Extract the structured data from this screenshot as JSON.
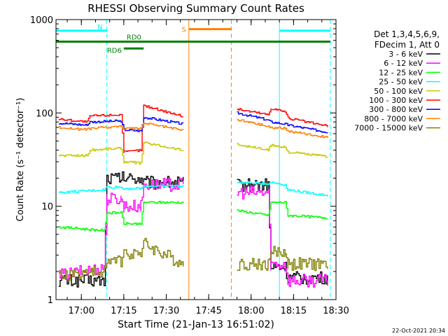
{
  "chart_data": {
    "type": "line",
    "title": "RHESSI Observing Summary Count Rates",
    "xlabel": "Start Time (21-Jan-13 16:51:02)",
    "ylabel": "Count Rate (s⁻¹ detector⁻¹)",
    "xlim": [
      "16:51:02",
      "18:30:00"
    ],
    "ylim": [
      1,
      1000
    ],
    "y_scale": "log",
    "x_ticks": [
      "17:00",
      "17:15",
      "17:30",
      "17:45",
      "18:00",
      "18:15",
      "18:30"
    ],
    "y_ticks": [
      "1",
      "10",
      "100",
      "1000"
    ],
    "legend_position": "top-right",
    "legend_header": [
      "Det 1,3,4,5,6,9,",
      "FDecim 1, Att 0"
    ],
    "footer_timestamp": "22-Oct-2021 20:34",
    "data_gaps": [
      [
        "17:37",
        "17:54"
      ]
    ],
    "series": [
      {
        "name": "3 - 6 keV",
        "color": "#000000",
        "points": [
          [
            "16:52",
            1.6
          ],
          [
            "17:08",
            1.6
          ],
          [
            "17:09",
            20
          ],
          [
            "17:21",
            20
          ],
          [
            "17:22",
            18
          ],
          [
            "17:36",
            18
          ],
          [
            "17:55",
            17
          ],
          [
            "18:06",
            17
          ],
          [
            "18:07",
            2.2
          ],
          [
            "18:12",
            2.2
          ],
          [
            "18:13",
            1.7
          ],
          [
            "18:27",
            1.7
          ]
        ]
      },
      {
        "name": "6 - 12 keV",
        "color": "#ff00ff",
        "points": [
          [
            "16:52",
            1.8
          ],
          [
            "17:08",
            2.2
          ],
          [
            "17:09",
            12
          ],
          [
            "17:14",
            12
          ],
          [
            "17:15",
            10
          ],
          [
            "17:21",
            10
          ],
          [
            "17:22",
            17
          ],
          [
            "17:36",
            17
          ],
          [
            "17:55",
            14
          ],
          [
            "18:06",
            14
          ],
          [
            "18:07",
            2.4
          ],
          [
            "18:12",
            2.4
          ],
          [
            "18:13",
            1.6
          ],
          [
            "18:27",
            1.6
          ]
        ]
      },
      {
        "name": "12 - 25 keV",
        "color": "#00ff00",
        "points": [
          [
            "16:52",
            6
          ],
          [
            "17:08",
            5.5
          ],
          [
            "17:09",
            8.5
          ],
          [
            "17:14",
            8.5
          ],
          [
            "17:15",
            6.5
          ],
          [
            "17:21",
            6.5
          ],
          [
            "17:22",
            11
          ],
          [
            "17:36",
            11
          ],
          [
            "17:55",
            9
          ],
          [
            "18:06",
            8
          ],
          [
            "18:07",
            11
          ],
          [
            "18:12",
            11
          ],
          [
            "18:13",
            8
          ],
          [
            "18:27",
            7.5
          ]
        ]
      },
      {
        "name": "25 - 50 keV",
        "color": "#00ffff",
        "points": [
          [
            "16:52",
            14
          ],
          [
            "17:08",
            15
          ],
          [
            "17:09",
            16
          ],
          [
            "17:14",
            16
          ],
          [
            "17:15",
            15.5
          ],
          [
            "17:21",
            15.5
          ],
          [
            "17:22",
            16.5
          ],
          [
            "17:36",
            16.5
          ],
          [
            "17:55",
            18
          ],
          [
            "18:06",
            17.5
          ],
          [
            "18:07",
            18
          ],
          [
            "18:12",
            17
          ],
          [
            "18:13",
            15
          ],
          [
            "18:27",
            13
          ]
        ]
      },
      {
        "name": "50 - 100 keV",
        "color": "#c8c800",
        "points": [
          [
            "16:52",
            35
          ],
          [
            "17:02",
            35
          ],
          [
            "17:03",
            40
          ],
          [
            "17:14",
            42
          ],
          [
            "17:15",
            30
          ],
          [
            "17:21",
            29
          ],
          [
            "17:22",
            48
          ],
          [
            "17:36",
            40
          ],
          [
            "17:55",
            46
          ],
          [
            "18:06",
            40
          ],
          [
            "18:07",
            45
          ],
          [
            "18:12",
            43
          ],
          [
            "18:13",
            38
          ],
          [
            "18:27",
            34
          ]
        ]
      },
      {
        "name": "100 - 300 keV",
        "color": "#ff0000",
        "points": [
          [
            "16:52",
            86
          ],
          [
            "17:02",
            80
          ],
          [
            "17:03",
            93
          ],
          [
            "17:14",
            96
          ],
          [
            "17:15",
            38
          ],
          [
            "17:21",
            40
          ],
          [
            "17:22",
            120
          ],
          [
            "17:36",
            92
          ],
          [
            "17:55",
            110
          ],
          [
            "18:06",
            96
          ],
          [
            "18:07",
            112
          ],
          [
            "18:12",
            104
          ],
          [
            "18:13",
            88
          ],
          [
            "18:27",
            72
          ]
        ]
      },
      {
        "name": "300 - 800 keV",
        "color": "#0000ff",
        "points": [
          [
            "16:52",
            78
          ],
          [
            "17:02",
            74
          ],
          [
            "17:03",
            80
          ],
          [
            "17:14",
            82
          ],
          [
            "17:15",
            66
          ],
          [
            "17:21",
            64
          ],
          [
            "17:22",
            90
          ],
          [
            "17:36",
            76
          ],
          [
            "17:55",
            100
          ],
          [
            "18:06",
            84
          ],
          [
            "18:07",
            80
          ],
          [
            "18:12",
            76
          ],
          [
            "18:13",
            74
          ],
          [
            "18:27",
            62
          ]
        ]
      },
      {
        "name": "800 - 7000 keV",
        "color": "#ff8000",
        "points": [
          [
            "16:52",
            70
          ],
          [
            "17:02",
            66
          ],
          [
            "17:03",
            68
          ],
          [
            "17:14",
            72
          ],
          [
            "17:15",
            68
          ],
          [
            "17:21",
            68
          ],
          [
            "17:22",
            78
          ],
          [
            "17:36",
            65
          ],
          [
            "17:55",
            85
          ],
          [
            "18:06",
            72
          ],
          [
            "18:07",
            70
          ],
          [
            "18:12",
            68
          ],
          [
            "18:13",
            64
          ],
          [
            "18:27",
            55
          ]
        ]
      },
      {
        "name": "7000 - 15000 keV",
        "color": "#808000",
        "points": [
          [
            "16:52",
            1.8
          ],
          [
            "17:08",
            2
          ],
          [
            "17:09",
            2.6
          ],
          [
            "17:14",
            2.6
          ],
          [
            "17:15",
            3.2
          ],
          [
            "17:21",
            3.2
          ],
          [
            "17:22",
            4
          ],
          [
            "17:36",
            2.4
          ],
          [
            "17:55",
            2.4
          ],
          [
            "18:06",
            2.4
          ],
          [
            "18:07",
            3.2
          ],
          [
            "18:12",
            3.2
          ],
          [
            "18:13",
            2.4
          ],
          [
            "18:27",
            2.4
          ]
        ]
      }
    ],
    "flag_bars": [
      {
        "label": "N",
        "color": "#00ffff",
        "y": 760,
        "intervals": [
          [
            "16:51:02",
            "17:09"
          ],
          [
            "18:10",
            "18:28"
          ]
        ]
      },
      {
        "label": "S",
        "color": "#ff8000",
        "y": 790,
        "intervals": [
          [
            "17:38",
            "17:53"
          ]
        ]
      },
      {
        "label": "RD0",
        "color": "#008000",
        "y": 580,
        "intervals": [
          [
            "16:51:02",
            "18:28"
          ]
        ]
      },
      {
        "label": "RD6",
        "color": "#008000",
        "y": 490,
        "intervals": [
          [
            "17:15",
            "17:22"
          ]
        ]
      }
    ],
    "vertical_markers": [
      {
        "color": "#00ffff",
        "style": "solid",
        "x": "16:51:02"
      },
      {
        "color": "#00ffff",
        "style": "dashed",
        "x": "17:09"
      },
      {
        "color": "#ff8000",
        "style": "solid",
        "x": "17:38"
      },
      {
        "color": "#ff8000",
        "style": "dashed",
        "x": "17:53"
      },
      {
        "color": "#00ffff",
        "style": "solid",
        "x": "18:10"
      },
      {
        "color": "#00ffff",
        "style": "dashed",
        "x": "18:28"
      }
    ]
  }
}
